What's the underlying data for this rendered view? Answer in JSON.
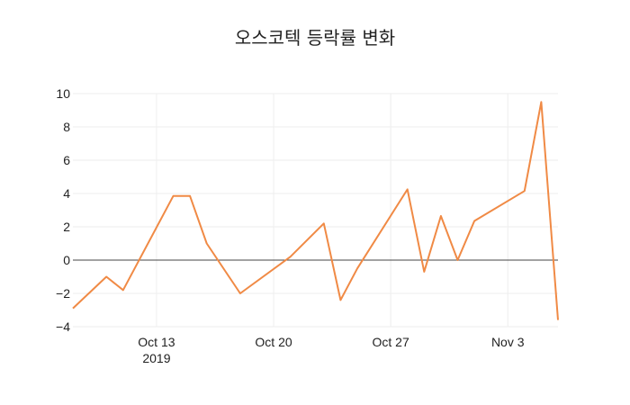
{
  "chart_data": {
    "type": "line",
    "title": "오스코텍 등락률 변화",
    "xlabel": "",
    "ylabel": "",
    "x_axis": {
      "type": "date",
      "range": [
        "2019-10-08",
        "2019-11-06"
      ],
      "ticks": [
        {
          "date": "2019-10-13",
          "label": "Oct 13",
          "sublabel": "2019"
        },
        {
          "date": "2019-10-20",
          "label": "Oct 20",
          "sublabel": ""
        },
        {
          "date": "2019-10-27",
          "label": "Oct 27",
          "sublabel": ""
        },
        {
          "date": "2019-11-03",
          "label": "Nov 3",
          "sublabel": ""
        }
      ]
    },
    "y_axis": {
      "range": [
        -4,
        10
      ],
      "ticks": [
        -4,
        -2,
        0,
        2,
        4,
        6,
        8,
        10
      ],
      "tick_labels": [
        "−4",
        "−2",
        "0",
        "2",
        "4",
        "6",
        "8",
        "10"
      ]
    },
    "grid": true,
    "zero_line": true,
    "line_color": "#f08a45",
    "series": [
      {
        "x": [
          "2019-10-08",
          "2019-10-10",
          "2019-10-11",
          "2019-10-14",
          "2019-10-15",
          "2019-10-16",
          "2019-10-18",
          "2019-10-21",
          "2019-10-23",
          "2019-10-24",
          "2019-10-25",
          "2019-10-28",
          "2019-10-29",
          "2019-10-30",
          "2019-10-31",
          "2019-11-01",
          "2019-11-04",
          "2019-11-05",
          "2019-11-06"
        ],
        "y": [
          -2.9,
          -1.0,
          -1.8,
          3.85,
          3.85,
          1.0,
          -2.0,
          0.2,
          2.2,
          -2.4,
          -0.5,
          4.25,
          -0.7,
          2.65,
          0.0,
          2.35,
          4.15,
          9.5,
          -3.6
        ]
      }
    ]
  }
}
